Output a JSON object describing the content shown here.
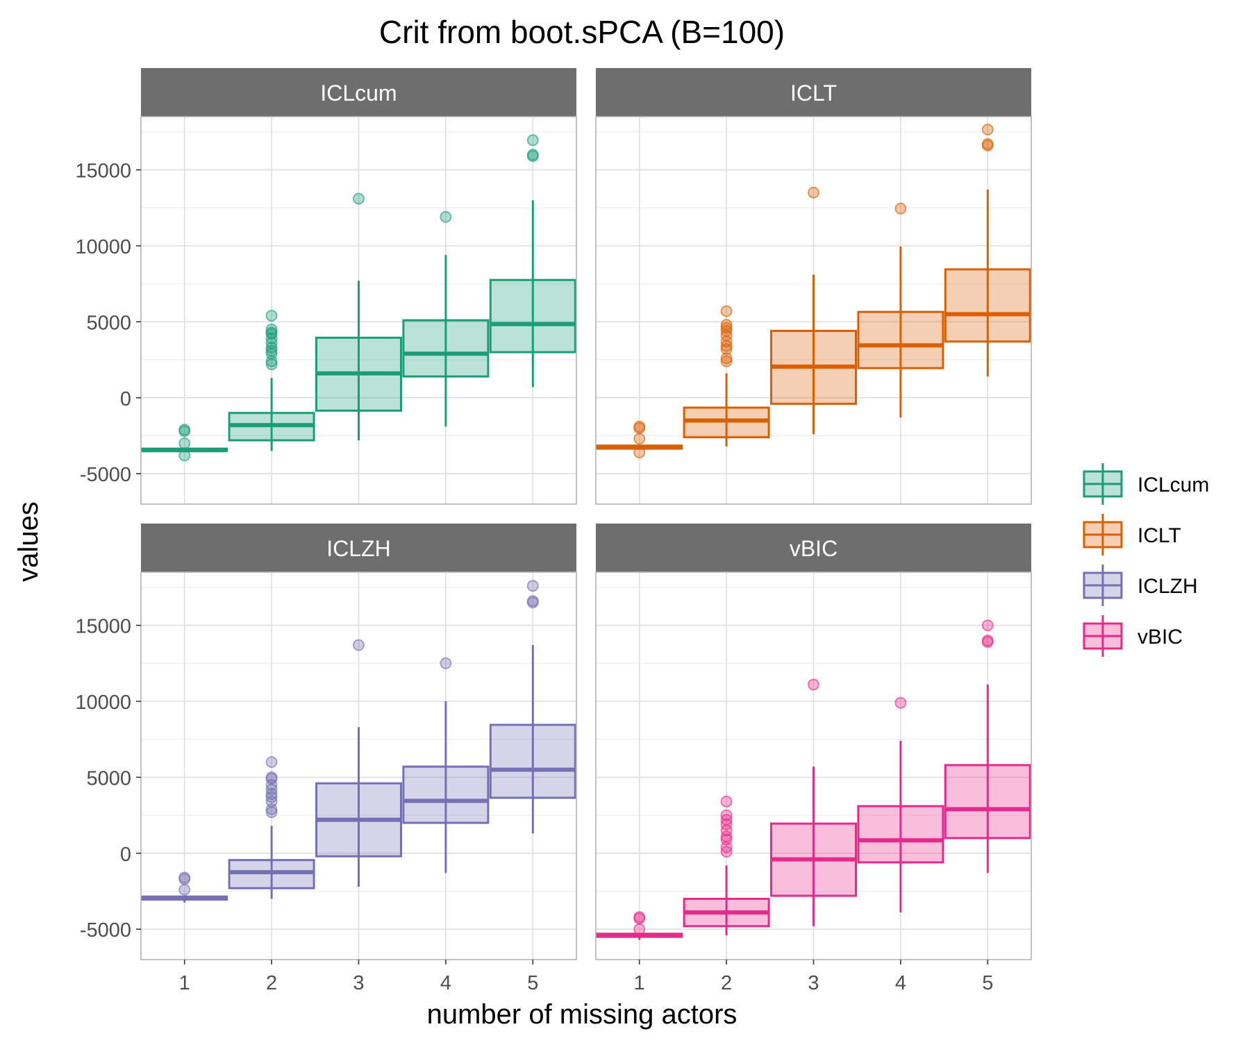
{
  "chart_data": {
    "type": "boxplot",
    "title": "Crit from boot.sPCA (B=100)",
    "xlabel": "number of missing actors",
    "ylabel": "values",
    "categories": [
      "1",
      "2",
      "3",
      "4",
      "5"
    ],
    "y_ticks": [
      -5000,
      0,
      5000,
      10000,
      15000
    ],
    "y_tick_labels": [
      "-5000",
      "0",
      "5000",
      "10000",
      "15000"
    ],
    "ylim": [
      -7000,
      18500
    ],
    "facet_layout": "2x2",
    "grid": true,
    "legend_position": "right",
    "legend": [
      {
        "label": "ICLcum",
        "color": "#1b9e77"
      },
      {
        "label": "ICLT",
        "color": "#d95f02"
      },
      {
        "label": "ICLZH",
        "color": "#7570b3"
      },
      {
        "label": "vBIC",
        "color": "#e7298a"
      }
    ],
    "panels": [
      {
        "strip": "ICLcum",
        "color": "#1b9e77",
        "boxes": [
          {
            "x": "1",
            "whisker_low": -3500,
            "q1": -3500,
            "median": -3450,
            "q3": -3350,
            "whisker_high": -3350,
            "outliers": [
              -2100,
              -2200,
              -3000,
              -3800
            ]
          },
          {
            "x": "2",
            "whisker_low": -3500,
            "q1": -2800,
            "median": -1800,
            "q3": -1000,
            "whisker_high": 1300,
            "outliers": [
              5400,
              4500,
              4300,
              4200,
              3900,
              3600,
              3300,
              3100,
              2900,
              2400,
              2200
            ]
          },
          {
            "x": "3",
            "whisker_low": -2800,
            "q1": -850,
            "median": 1600,
            "q3": 3950,
            "whisker_high": 7700,
            "outliers": [
              13100
            ]
          },
          {
            "x": "4",
            "whisker_low": -1900,
            "q1": 1400,
            "median": 2900,
            "q3": 5100,
            "whisker_high": 9400,
            "outliers": [
              11900
            ]
          },
          {
            "x": "5",
            "whisker_low": 700,
            "q1": 3000,
            "median": 4850,
            "q3": 7750,
            "whisker_high": 13000,
            "outliers": [
              16950,
              16000,
              15900
            ]
          }
        ]
      },
      {
        "strip": "ICLT",
        "color": "#d95f02",
        "boxes": [
          {
            "x": "1",
            "whisker_low": -3350,
            "q1": -3350,
            "median": -3250,
            "q3": -3150,
            "whisker_high": -3150,
            "outliers": [
              -1900,
              -2000,
              -2700,
              -3600
            ]
          },
          {
            "x": "2",
            "whisker_low": -3200,
            "q1": -2600,
            "median": -1500,
            "q3": -650,
            "whisker_high": 1600,
            "outliers": [
              5700,
              4800,
              4600,
              4400,
              4100,
              3700,
              3400,
              3200,
              2600,
              2400
            ]
          },
          {
            "x": "3",
            "whisker_low": -2400,
            "q1": -400,
            "median": 2050,
            "q3": 4400,
            "whisker_high": 8100,
            "outliers": [
              13500
            ]
          },
          {
            "x": "4",
            "whisker_low": -1300,
            "q1": 1950,
            "median": 3450,
            "q3": 5650,
            "whisker_high": 9950,
            "outliers": [
              12450
            ]
          },
          {
            "x": "5",
            "whisker_low": 1400,
            "q1": 3700,
            "median": 5500,
            "q3": 8450,
            "whisker_high": 13700,
            "outliers": [
              17650,
              16700,
              16600
            ]
          }
        ]
      },
      {
        "strip": "ICLZH",
        "color": "#7570b3",
        "boxes": [
          {
            "x": "1",
            "whisker_low": -3250,
            "q1": -3050,
            "median": -2950,
            "q3": -2850,
            "whisker_high": -2850,
            "outliers": [
              -1600,
              -1700,
              -2400
            ]
          },
          {
            "x": "2",
            "whisker_low": -3000,
            "q1": -2300,
            "median": -1250,
            "q3": -450,
            "whisker_high": 1800,
            "outliers": [
              6000,
              5000,
              4900,
              4500,
              4200,
              3900,
              3700,
              3400,
              2900,
              2700
            ]
          },
          {
            "x": "3",
            "whisker_low": -2200,
            "q1": -200,
            "median": 2200,
            "q3": 4600,
            "whisker_high": 8300,
            "outliers": [
              13700
            ]
          },
          {
            "x": "4",
            "whisker_low": -1300,
            "q1": 2000,
            "median": 3450,
            "q3": 5700,
            "whisker_high": 10000,
            "outliers": [
              12500
            ]
          },
          {
            "x": "5",
            "whisker_low": 1300,
            "q1": 3650,
            "median": 5500,
            "q3": 8450,
            "whisker_high": 13700,
            "outliers": [
              17600,
              16600,
              16500
            ]
          }
        ]
      },
      {
        "strip": "vBIC",
        "color": "#e7298a",
        "boxes": [
          {
            "x": "1",
            "whisker_low": -5700,
            "q1": -5500,
            "median": -5400,
            "q3": -5300,
            "whisker_high": -5300,
            "outliers": [
              -4200,
              -4300,
              -5000
            ]
          },
          {
            "x": "2",
            "whisker_low": -5400,
            "q1": -4800,
            "median": -3900,
            "q3": -3000,
            "whisker_high": -800,
            "outliers": [
              3400,
              2500,
              2200,
              1900,
              1500,
              1100,
              900,
              400,
              100
            ]
          },
          {
            "x": "3",
            "whisker_low": -4800,
            "q1": -2800,
            "median": -400,
            "q3": 1950,
            "whisker_high": 5700,
            "outliers": [
              11100
            ]
          },
          {
            "x": "4",
            "whisker_low": -3900,
            "q1": -600,
            "median": 850,
            "q3": 3100,
            "whisker_high": 7400,
            "outliers": [
              9900
            ]
          },
          {
            "x": "5",
            "whisker_low": -1300,
            "q1": 1000,
            "median": 2900,
            "q3": 5800,
            "whisker_high": 11100,
            "outliers": [
              15000,
              14000,
              13900
            ]
          }
        ]
      }
    ]
  }
}
